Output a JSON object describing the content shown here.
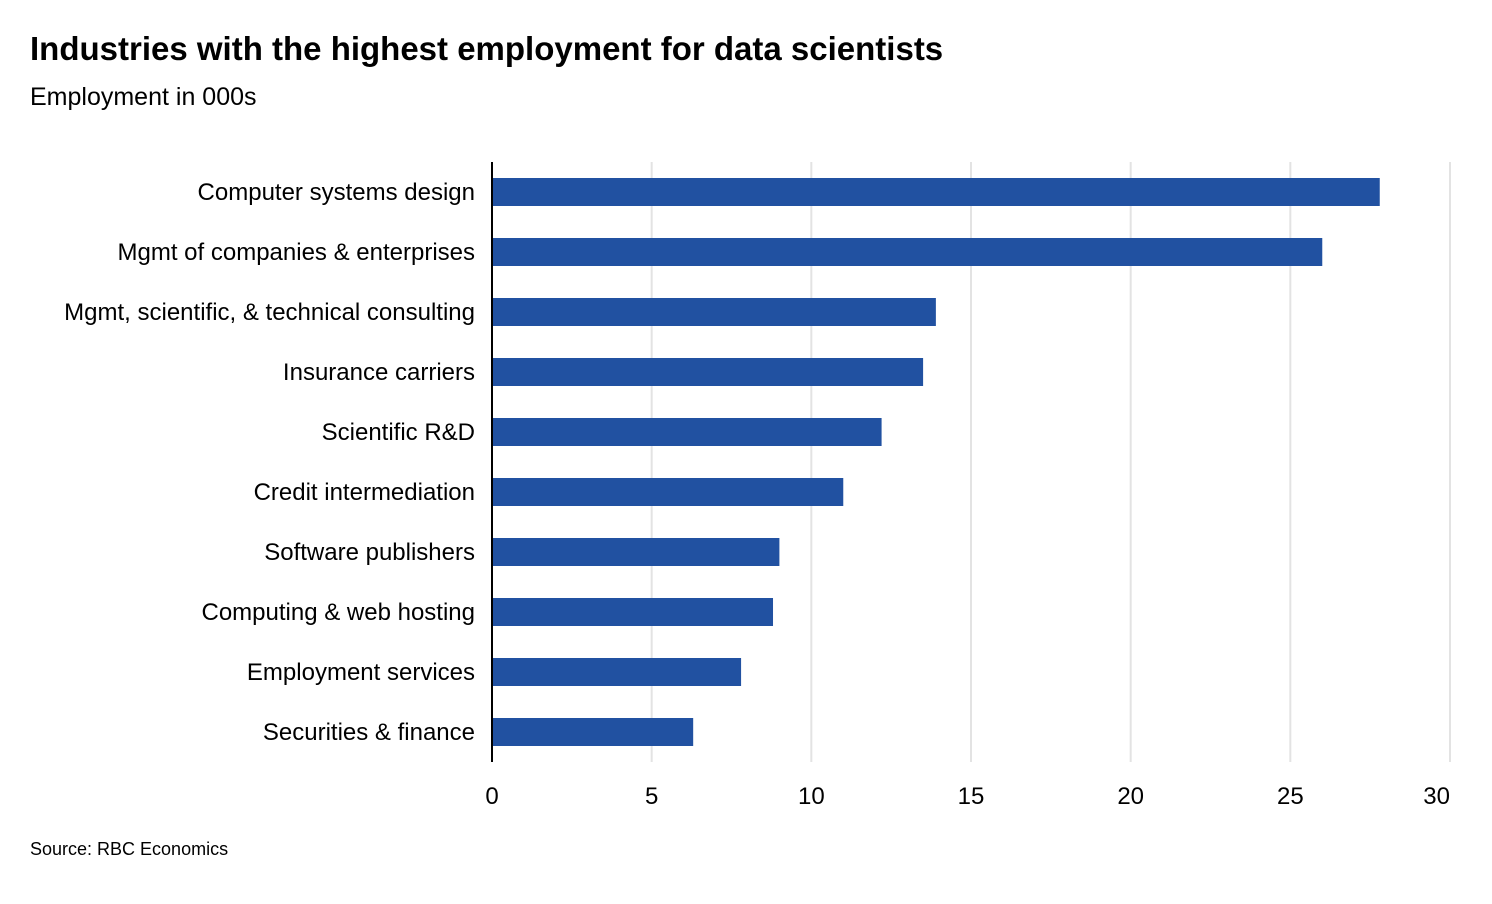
{
  "chart_data": {
    "type": "bar",
    "orientation": "horizontal",
    "title": "Industries with the highest employment for data scientists",
    "subtitle": "Employment in 000s",
    "source": "Source: RBC Economics",
    "xlabel": "",
    "ylabel": "",
    "xlim": [
      0,
      30
    ],
    "xticks": [
      0,
      5,
      10,
      15,
      20,
      25,
      30
    ],
    "grid": true,
    "bar_color": "#2151a1",
    "grid_color": "#e3e3e3",
    "categories": [
      "Computer systems design",
      "Mgmt of companies & enterprises",
      "Mgmt, scientific, & technical consulting",
      "Insurance carriers",
      "Scientific R&D",
      "Credit intermediation",
      "Software publishers",
      "Computing & web hosting",
      "Employment services",
      "Securities & finance"
    ],
    "values": [
      27.8,
      26.0,
      13.9,
      13.5,
      12.2,
      11.0,
      9.0,
      8.8,
      7.8,
      6.3
    ]
  }
}
